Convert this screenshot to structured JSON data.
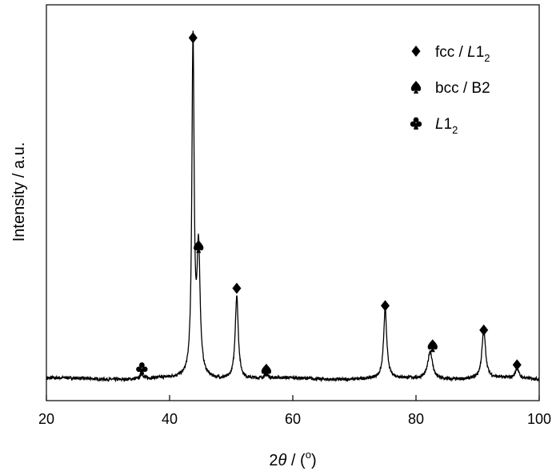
{
  "chart_data": {
    "type": "line",
    "title": "",
    "xlabel": "2θ / (°)",
    "xlabel_parts": {
      "prefix": "2",
      "symbol": "θ",
      "middle": " / (",
      "degree": "o",
      "suffix": ")"
    },
    "ylabel": "Intensity / a.u.",
    "xlim": [
      20,
      100
    ],
    "ylim": [
      0,
      100
    ],
    "x_ticks": [
      "20",
      "40",
      "60",
      "80",
      "100"
    ],
    "grid": false,
    "legend_position": "top-right",
    "legend": [
      {
        "marker": "diamond",
        "label_main": "fcc / ",
        "label_italic": "L",
        "label_rest": "1",
        "label_sub": "2"
      },
      {
        "marker": "spade",
        "label_main": "bcc / B2",
        "label_italic": "",
        "label_rest": "",
        "label_sub": ""
      },
      {
        "marker": "club",
        "label_main": "",
        "label_italic": "L",
        "label_rest": "1",
        "label_sub": "2"
      }
    ],
    "series": [
      {
        "baseline": 4,
        "peaks": [
          {
            "x": 35.5,
            "height": 1.5,
            "width": 0.25
          },
          {
            "x": 43.8,
            "height": 96,
            "width": 0.22
          },
          {
            "x": 44.7,
            "height": 36,
            "width": 0.3
          },
          {
            "x": 50.9,
            "height": 24,
            "width": 0.3
          },
          {
            "x": 55.7,
            "height": 1.5,
            "width": 0.25
          },
          {
            "x": 75.0,
            "height": 20,
            "width": 0.3
          },
          {
            "x": 82.3,
            "height": 8,
            "width": 0.45
          },
          {
            "x": 91.0,
            "height": 14,
            "width": 0.35
          },
          {
            "x": 96.4,
            "height": 3,
            "width": 0.3
          }
        ]
      }
    ],
    "peak_markers": [
      {
        "x": 35.5,
        "y": 7,
        "marker": "club"
      },
      {
        "x": 43.8,
        "y": 102,
        "marker": "diamond"
      },
      {
        "x": 44.7,
        "y": 42,
        "marker": "spade"
      },
      {
        "x": 50.9,
        "y": 30,
        "marker": "diamond"
      },
      {
        "x": 55.7,
        "y": 6.5,
        "marker": "spade"
      },
      {
        "x": 75.0,
        "y": 25,
        "marker": "diamond"
      },
      {
        "x": 82.7,
        "y": 13.5,
        "marker": "spade"
      },
      {
        "x": 91.0,
        "y": 18,
        "marker": "diamond"
      },
      {
        "x": 96.4,
        "y": 8,
        "marker": "diamond"
      }
    ]
  }
}
